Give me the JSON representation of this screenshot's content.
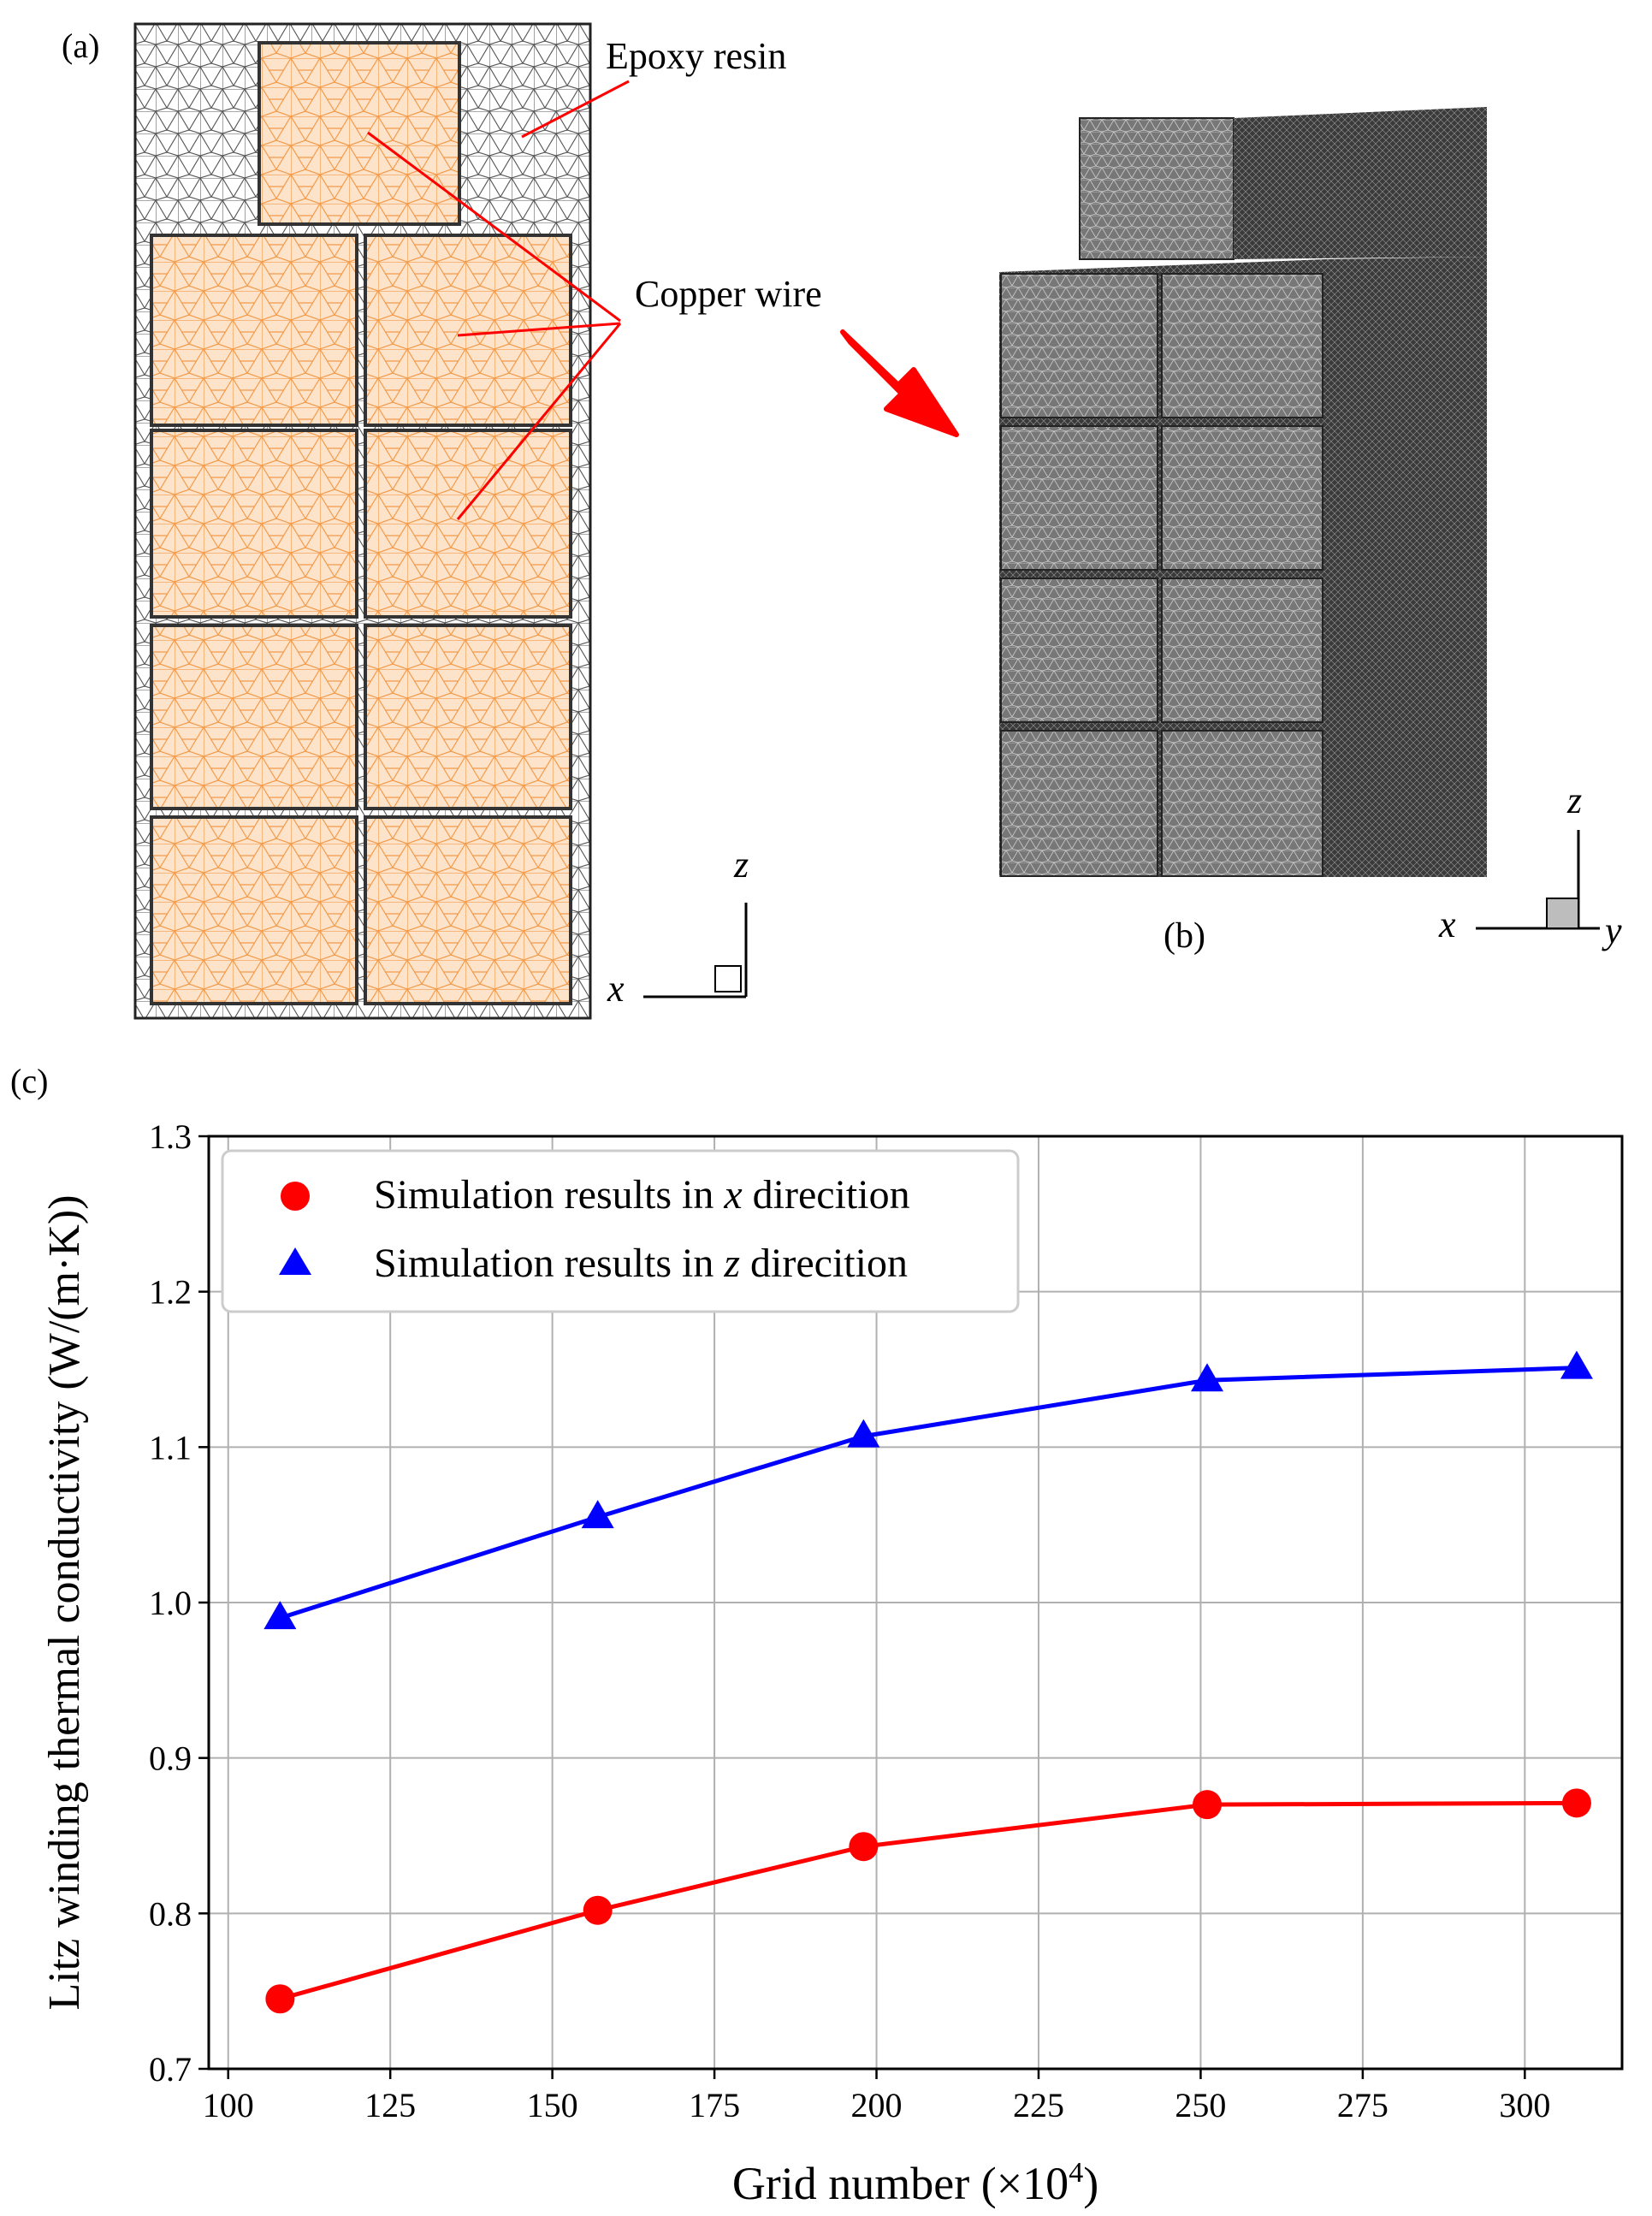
{
  "panel_a": {
    "label": "(a)",
    "epoxy_label": "Epoxy resin",
    "copper_label": "Copper wire",
    "axis_z": "z",
    "axis_x": "x",
    "colors": {
      "copper": "#f29a4a",
      "epoxy_mesh": "#333333",
      "leader": "#ff0000"
    }
  },
  "panel_b": {
    "label": "(b)",
    "axis_z": "z",
    "axis_x": "x",
    "axis_y": "y",
    "colors": {
      "mesh_fill": "#6e6e6e",
      "arrow": "#ff0000"
    }
  },
  "panel_c": {
    "label": "(c)"
  },
  "chart_data": {
    "type": "line",
    "xlabel_prefix": "Grid number (×10",
    "xlabel_sup": "4",
    "xlabel_suffix": ")",
    "ylabel": "Litz winding thermal conductivity (W/(m·K))",
    "xlim": [
      97,
      315
    ],
    "ylim": [
      0.7,
      1.3
    ],
    "x_ticks": [
      100,
      125,
      150,
      175,
      200,
      225,
      250,
      275,
      300
    ],
    "y_ticks": [
      "0.7",
      "0.8",
      "0.9",
      "1.0",
      "1.1",
      "1.2",
      "1.3"
    ],
    "grid": true,
    "legend_position": "top-left",
    "series": [
      {
        "name_prefix": "Simulation results in ",
        "name_axis": "x",
        "name_suffix": " direcition",
        "marker": "circle",
        "color": "#ff0000",
        "x": [
          108,
          157,
          198,
          251,
          308
        ],
        "y": [
          0.745,
          0.802,
          0.843,
          0.87,
          0.871
        ]
      },
      {
        "name_prefix": "Simulation results in ",
        "name_axis": "z",
        "name_suffix": " direcition",
        "marker": "triangle",
        "color": "#0000ff",
        "x": [
          108,
          157,
          198,
          251,
          308
        ],
        "y": [
          0.99,
          1.055,
          1.107,
          1.143,
          1.151
        ]
      }
    ]
  }
}
